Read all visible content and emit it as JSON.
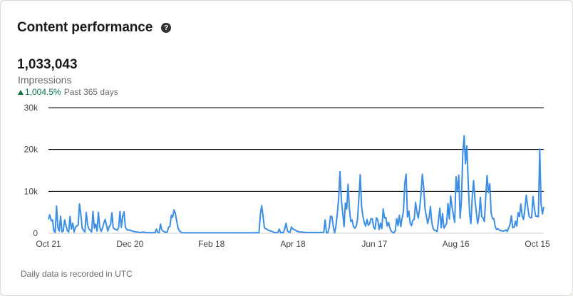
{
  "card": {
    "title": "Content performance",
    "help_icon": "help-circle-icon",
    "metric_value": "1,033,043",
    "metric_label": "Impressions",
    "change_icon": "up-arrow-icon",
    "change_value": "1,004.5%",
    "change_period": "Past 365 days",
    "footnote": "Daily data is recorded in UTC"
  },
  "colors": {
    "line": "#3a8ee6",
    "positive": "#057642",
    "grid": "#000000"
  },
  "chart_data": {
    "type": "line",
    "title": "",
    "xlabel": "",
    "ylabel": "",
    "ylim": [
      0,
      30000
    ],
    "yticks": [
      0,
      10000,
      20000,
      30000
    ],
    "ytick_labels": [
      "0",
      "10k",
      "20k",
      "30k"
    ],
    "xtick_labels": [
      "Oct 21",
      "Dec 20",
      "Feb 18",
      "Apr 18",
      "Jun 17",
      "Aug 16",
      "Oct 15"
    ],
    "x_start": "Oct 21",
    "x_end": "Oct 15",
    "grid": true,
    "legend": "none",
    "series": [
      {
        "values": [
          3300,
          4400,
          3000,
          3200,
          600,
          200,
          6500,
          1300,
          500,
          4100,
          300,
          600,
          3200,
          1800,
          600,
          300,
          4000,
          1000,
          2400,
          300,
          1500,
          1700,
          2000,
          7000,
          4500,
          1200,
          700,
          300,
          5000,
          2000,
          1000,
          700,
          300,
          5200,
          1200,
          2200,
          500,
          5000,
          1500,
          400,
          1200,
          2400,
          3300,
          1900,
          500,
          1600,
          2000,
          4900,
          1300,
          1000,
          900,
          700,
          1400,
          5200,
          1400,
          4100,
          5100,
          1400,
          900,
          700,
          800,
          600,
          600,
          400,
          400,
          300,
          300,
          200,
          200,
          200,
          300,
          200,
          200,
          100,
          100,
          200,
          100,
          100,
          200,
          100,
          1000,
          200,
          100,
          2200,
          800,
          500,
          300,
          200,
          300,
          1500,
          1600,
          4300,
          3800,
          5600,
          4800,
          2900,
          1300,
          600,
          300,
          100,
          100,
          100,
          100,
          100,
          100,
          100,
          100,
          100,
          100,
          100,
          100,
          100,
          100,
          100,
          100,
          100,
          100,
          100,
          100,
          100,
          100,
          100,
          100,
          100,
          100,
          100,
          100,
          100,
          100,
          100,
          100,
          100,
          100,
          100,
          100,
          100,
          100,
          100,
          100,
          100,
          100,
          100,
          100,
          100,
          100,
          100,
          100,
          100,
          100,
          100,
          100,
          100,
          100,
          100,
          200,
          100,
          100,
          4500,
          6600,
          4100,
          1300,
          1100,
          900,
          700,
          600,
          500,
          400,
          200,
          200,
          100,
          200,
          1000,
          100,
          200,
          100,
          1000,
          2400,
          600,
          300,
          200,
          1500,
          1000,
          900,
          700,
          500,
          400,
          300,
          300,
          300,
          200,
          200,
          200,
          200,
          200,
          200,
          200,
          200,
          200,
          200,
          200,
          200,
          200,
          200,
          200,
          200,
          3200,
          100,
          100,
          1300,
          4100,
          4000,
          1700,
          100,
          1700,
          4600,
          8200,
          14700,
          8000,
          4900,
          1600,
          7200,
          5800,
          11700,
          5800,
          2800,
          3200,
          1600,
          1200,
          1700,
          3300,
          8400,
          14000,
          6400,
          4000,
          2500,
          1700,
          3300,
          1900,
          2300,
          3500,
          3400,
          1400,
          1000,
          3700,
          3200,
          900,
          2400,
          1100,
          5800,
          3600,
          3800,
          1700,
          2600,
          1200,
          500,
          200,
          100,
          600,
          3500,
          1800,
          4300,
          1600,
          3500,
          5200,
          12000,
          14100,
          3900,
          5300,
          2400,
          1800,
          3100,
          3300,
          7400,
          5100,
          3600,
          5900,
          9200,
          14100,
          11000,
          5800,
          4100,
          2300,
          3800,
          6400,
          2600,
          1200,
          700,
          600,
          400,
          3200,
          6000,
          1300,
          4700,
          1200,
          1800,
          2300,
          7100,
          3400,
          8900,
          6300,
          4400,
          2600,
          13500,
          9900,
          13900,
          3600,
          7900,
          19200,
          23300,
          16600,
          20900,
          12300,
          4800,
          2300,
          8600,
          12600,
          8000,
          5100,
          2300,
          4100,
          8600,
          4000,
          3700,
          2800,
          8800,
          13800,
          9700,
          11800,
          4800,
          3500,
          3500,
          1600,
          900,
          1100,
          800,
          600,
          600,
          500,
          600,
          800,
          400,
          1300,
          2100,
          4200,
          1300,
          1400,
          2900,
          1700,
          4900,
          4000,
          7000,
          4200,
          3300,
          5700,
          9100,
          6600,
          4200,
          3700,
          3700,
          8800,
          6000,
          4100,
          4100,
          3900,
          20100,
          7000,
          4600,
          6300
        ]
      }
    ]
  }
}
